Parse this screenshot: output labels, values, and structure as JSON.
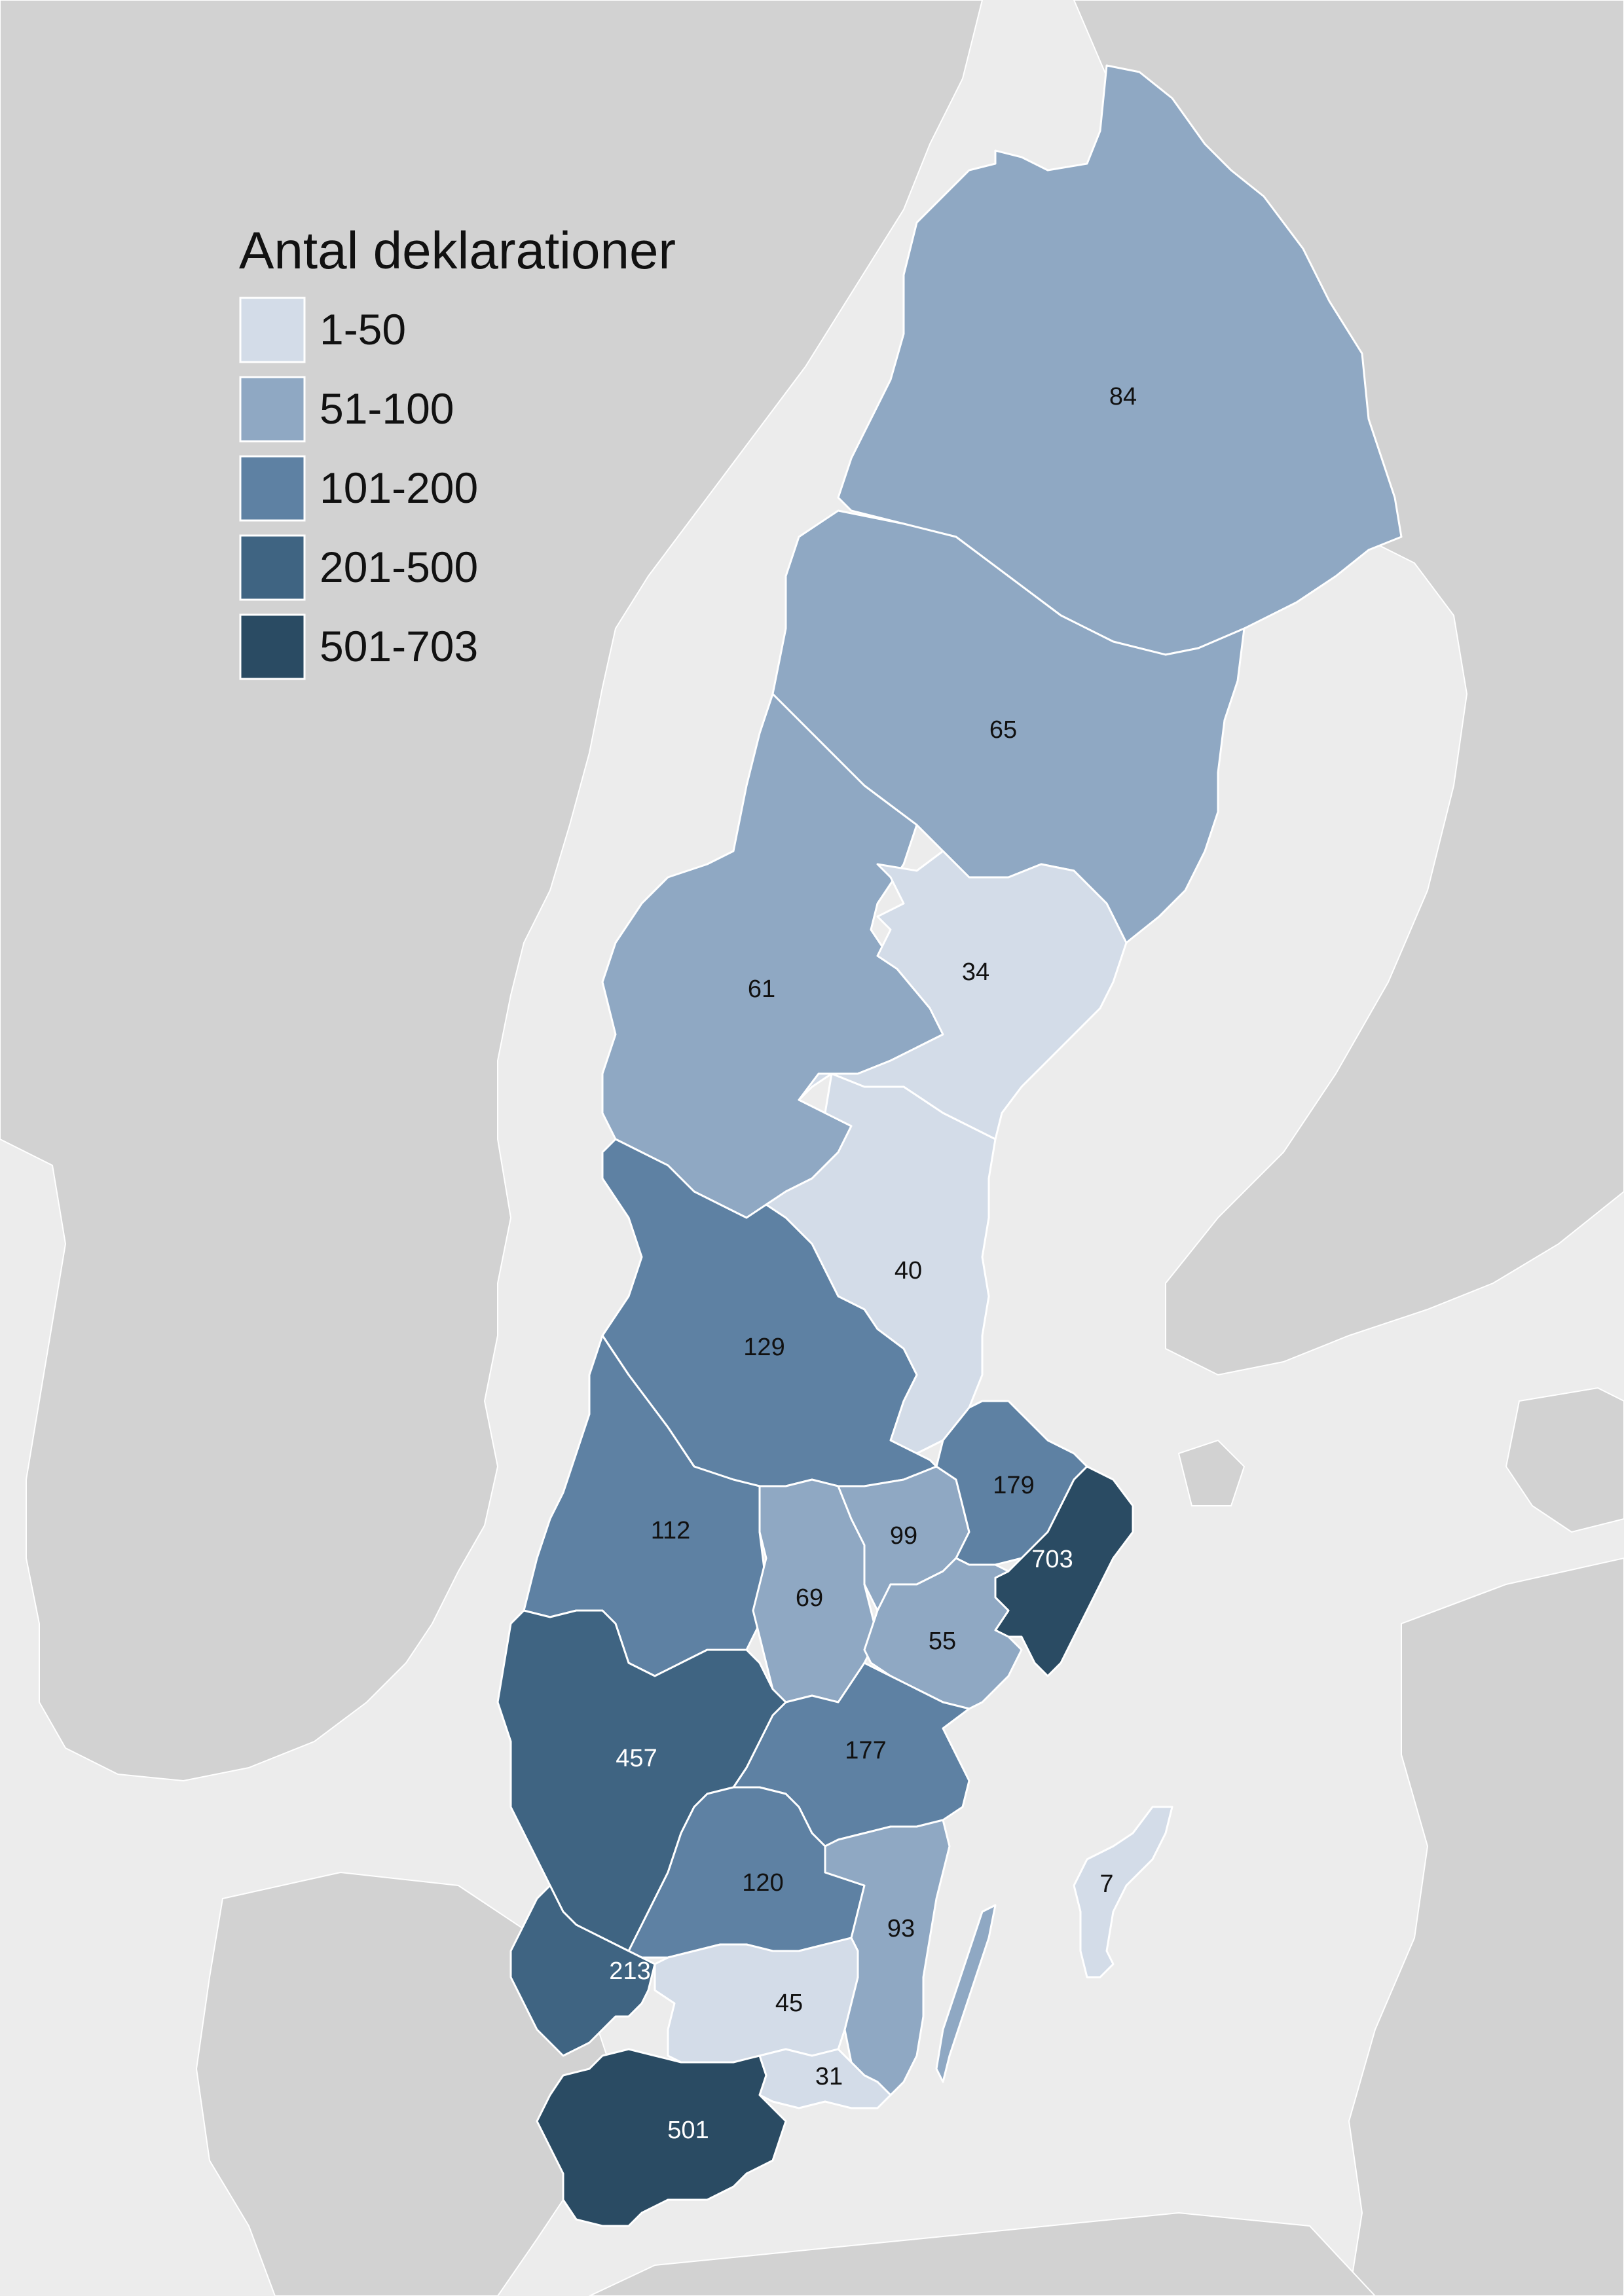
{
  "legend": {
    "title": "Antal deklarationer",
    "classes": [
      {
        "label": "1-50",
        "color": "#d3dce8"
      },
      {
        "label": "51-100",
        "color": "#8fa8c3"
      },
      {
        "label": "101-200",
        "color": "#5e81a3"
      },
      {
        "label": "201-500",
        "color": "#3f6482"
      },
      {
        "label": "501-703",
        "color": "#2a4b63"
      }
    ]
  },
  "colors": {
    "sea": "#ececec",
    "other_land": "#d2d2d2",
    "county_border": "#ffffff"
  },
  "counties": [
    {
      "id": "norrbotten",
      "value": 84,
      "label": "84",
      "class": 1
    },
    {
      "id": "vasterbotten",
      "value": 65,
      "label": "65",
      "class": 1
    },
    {
      "id": "vasternorrland",
      "value": 34,
      "label": "34",
      "class": 0
    },
    {
      "id": "jamtland",
      "value": 61,
      "label": "61",
      "class": 1
    },
    {
      "id": "gavleborg",
      "value": 40,
      "label": "40",
      "class": 0
    },
    {
      "id": "dalarna",
      "value": 129,
      "label": "129",
      "class": 2
    },
    {
      "id": "varmland",
      "value": 112,
      "label": "112",
      "class": 2
    },
    {
      "id": "orebro",
      "value": 69,
      "label": "69",
      "class": 1
    },
    {
      "id": "vastmanland",
      "value": 99,
      "label": "99",
      "class": 1
    },
    {
      "id": "uppsala",
      "value": 179,
      "label": "179",
      "class": 2
    },
    {
      "id": "stockholm",
      "value": 703,
      "label": "703",
      "class": 4
    },
    {
      "id": "sodermanland",
      "value": 55,
      "label": "55",
      "class": 1
    },
    {
      "id": "ostergotland",
      "value": 177,
      "label": "177",
      "class": 2
    },
    {
      "id": "vastra-gotaland",
      "value": 457,
      "label": "457",
      "class": 3
    },
    {
      "id": "jonkoping",
      "value": 120,
      "label": "120",
      "class": 2
    },
    {
      "id": "kalmar",
      "value": 93,
      "label": "93",
      "class": 1
    },
    {
      "id": "gotland",
      "value": 7,
      "label": "7",
      "class": 0
    },
    {
      "id": "halland",
      "value": 213,
      "label": "213",
      "class": 3
    },
    {
      "id": "kronoberg",
      "value": 45,
      "label": "45",
      "class": 0
    },
    {
      "id": "blekinge",
      "value": 31,
      "label": "31",
      "class": 0
    },
    {
      "id": "skane",
      "value": 501,
      "label": "501",
      "class": 4
    }
  ]
}
